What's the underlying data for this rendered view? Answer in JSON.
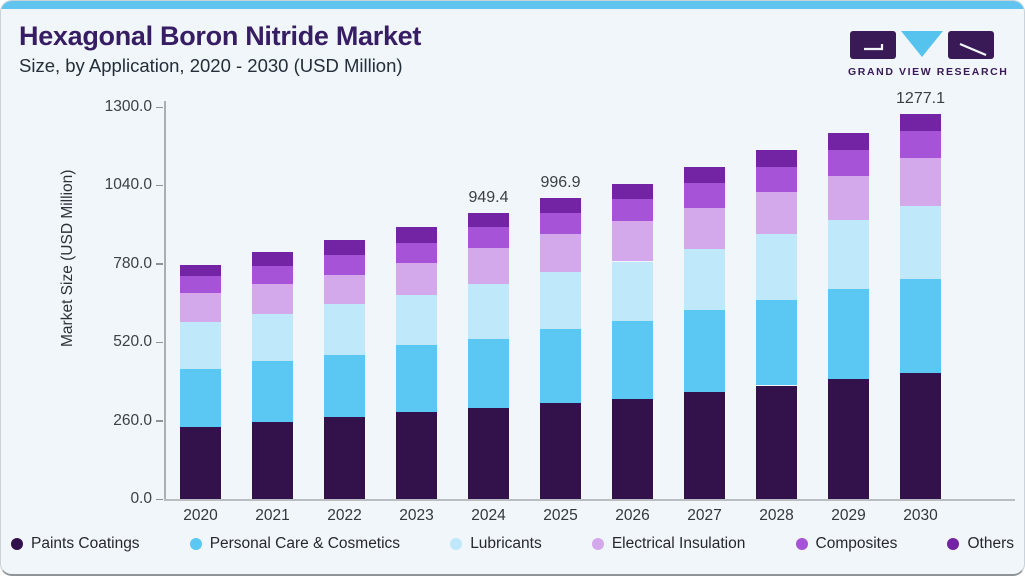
{
  "header": {
    "title": "Hexagonal Boron Nitride Market",
    "subtitle": "Size, by Application, 2020 - 2030 (USD Million)",
    "logo_text": "GRAND VIEW RESEARCH",
    "logo_icon": "gvr-logo",
    "accent_color": "#60c4ee",
    "title_color": "#371d63"
  },
  "chart_data": {
    "type": "bar",
    "stacked": true,
    "title": "Hexagonal Boron Nitride Market Size, by Application, 2020 - 2030 (USD Million)",
    "xlabel": "",
    "ylabel": "Market Size (USD Million)",
    "ylim": [
      0,
      1300
    ],
    "yticks": [
      "0.0",
      "260.0",
      "520.0",
      "780.0",
      "1040.0",
      "1300.0"
    ],
    "grid": false,
    "legend_position": "bottom",
    "categories": [
      "2020",
      "2021",
      "2022",
      "2023",
      "2024",
      "2025",
      "2026",
      "2027",
      "2028",
      "2029",
      "2030"
    ],
    "series": [
      {
        "name": "Paints Coatings",
        "color": "#33124b",
        "values": [
          238.7,
          253.7,
          270.6,
          287.7,
          301.5,
          316.8,
          333.1,
          355.9,
          376.4,
          397.8,
          417.4
        ]
      },
      {
        "name": "Personal Care & Cosmetics",
        "color": "#5bc8f4",
        "values": [
          193.3,
          204.6,
          206.6,
          221.6,
          230.5,
          247.1,
          258.1,
          269.3,
          284.0,
          299.0,
          312.0
        ]
      },
      {
        "name": "Lubricants",
        "color": "#bfe8fa",
        "values": [
          153.4,
          155.5,
          168.4,
          167.1,
          182.1,
          188.0,
          196.4,
          204.6,
          218.2,
          227.1,
          243.6
        ]
      },
      {
        "name": "Electrical Insulation",
        "color": "#d3a9eb",
        "values": [
          96.5,
          100.2,
          98.8,
          107.7,
          119.3,
          125.5,
          133.0,
          134.0,
          139.7,
          148.0,
          156.5
        ]
      },
      {
        "name": "Composites",
        "color": "#a653d7",
        "values": [
          56.9,
          60.0,
          65.8,
          66.2,
          68.2,
          71.8,
          75.0,
          85.3,
          84.3,
          85.3,
          89.8
        ]
      },
      {
        "name": "Others",
        "color": "#7224a4",
        "values": [
          37.5,
          45.7,
          47.8,
          53.2,
          47.8,
          47.7,
          47.8,
          53.5,
          54.6,
          56.6,
          57.8
        ]
      }
    ],
    "bar_total_labels": [
      null,
      null,
      null,
      null,
      "949.4",
      "996.9",
      null,
      null,
      null,
      null,
      "1277.1"
    ]
  }
}
